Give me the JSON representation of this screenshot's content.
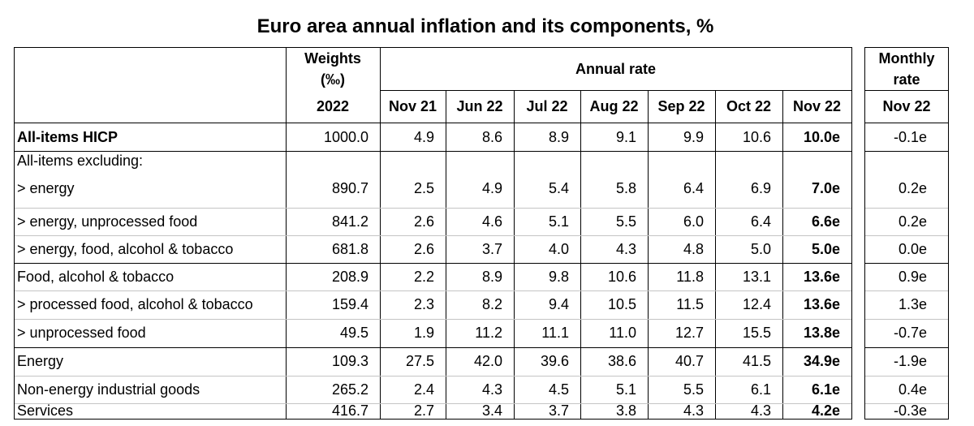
{
  "title": "Euro area annual inflation and its components, %",
  "header": {
    "weights_line1": "Weights",
    "weights_line2": "(‰)",
    "weights_year": "2022",
    "annual_rate": "Annual rate",
    "monthly_line1": "Monthly",
    "monthly_line2": "rate",
    "periods": [
      "Nov 21",
      "Jun 22",
      "Jul 22",
      "Aug 22",
      "Sep 22",
      "Oct 22",
      "Nov 22"
    ],
    "monthly_period": "Nov 22"
  },
  "rows": [
    {
      "label": "All-items HICP",
      "weight": "1000.0",
      "rates": [
        "4.9",
        "8.6",
        "8.9",
        "9.1",
        "9.9",
        "10.6",
        "10.0e"
      ],
      "monthly": "-0.1e"
    },
    {
      "label": "All-items excluding:"
    },
    {
      "label": "> energy",
      "weight": "890.7",
      "rates": [
        "2.5",
        "4.9",
        "5.4",
        "5.8",
        "6.4",
        "6.9",
        "7.0e"
      ],
      "monthly": "0.2e"
    },
    {
      "label": "> energy, unprocessed food",
      "weight": "841.2",
      "rates": [
        "2.6",
        "4.6",
        "5.1",
        "5.5",
        "6.0",
        "6.4",
        "6.6e"
      ],
      "monthly": "0.2e"
    },
    {
      "label": "> energy, food, alcohol & tobacco",
      "weight": "681.8",
      "rates": [
        "2.6",
        "3.7",
        "4.0",
        "4.3",
        "4.8",
        "5.0",
        "5.0e"
      ],
      "monthly": "0.0e"
    },
    {
      "label": "Food, alcohol & tobacco",
      "weight": "208.9",
      "rates": [
        "2.2",
        "8.9",
        "9.8",
        "10.6",
        "11.8",
        "13.1",
        "13.6e"
      ],
      "monthly": "0.9e"
    },
    {
      "label": "> processed food, alcohol & tobacco",
      "weight": "159.4",
      "rates": [
        "2.3",
        "8.2",
        "9.4",
        "10.5",
        "11.5",
        "12.4",
        "13.6e"
      ],
      "monthly": "1.3e"
    },
    {
      "label": "> unprocessed food",
      "weight": "49.5",
      "rates": [
        "1.9",
        "11.2",
        "11.1",
        "11.0",
        "12.7",
        "15.5",
        "13.8e"
      ],
      "monthly": "-0.7e"
    },
    {
      "label": "Energy",
      "weight": "109.3",
      "rates": [
        "27.5",
        "42.0",
        "39.6",
        "38.6",
        "40.7",
        "41.5",
        "34.9e"
      ],
      "monthly": "-1.9e"
    },
    {
      "label": "Non-energy industrial goods",
      "weight": "265.2",
      "rates": [
        "2.4",
        "4.3",
        "4.5",
        "5.1",
        "5.5",
        "6.1",
        "6.1e"
      ],
      "monthly": "0.4e"
    },
    {
      "label": "Services",
      "weight": "416.7",
      "rates": [
        "2.7",
        "3.4",
        "3.7",
        "3.8",
        "4.3",
        "4.3",
        "4.2e"
      ],
      "monthly": "-0.3e"
    }
  ]
}
